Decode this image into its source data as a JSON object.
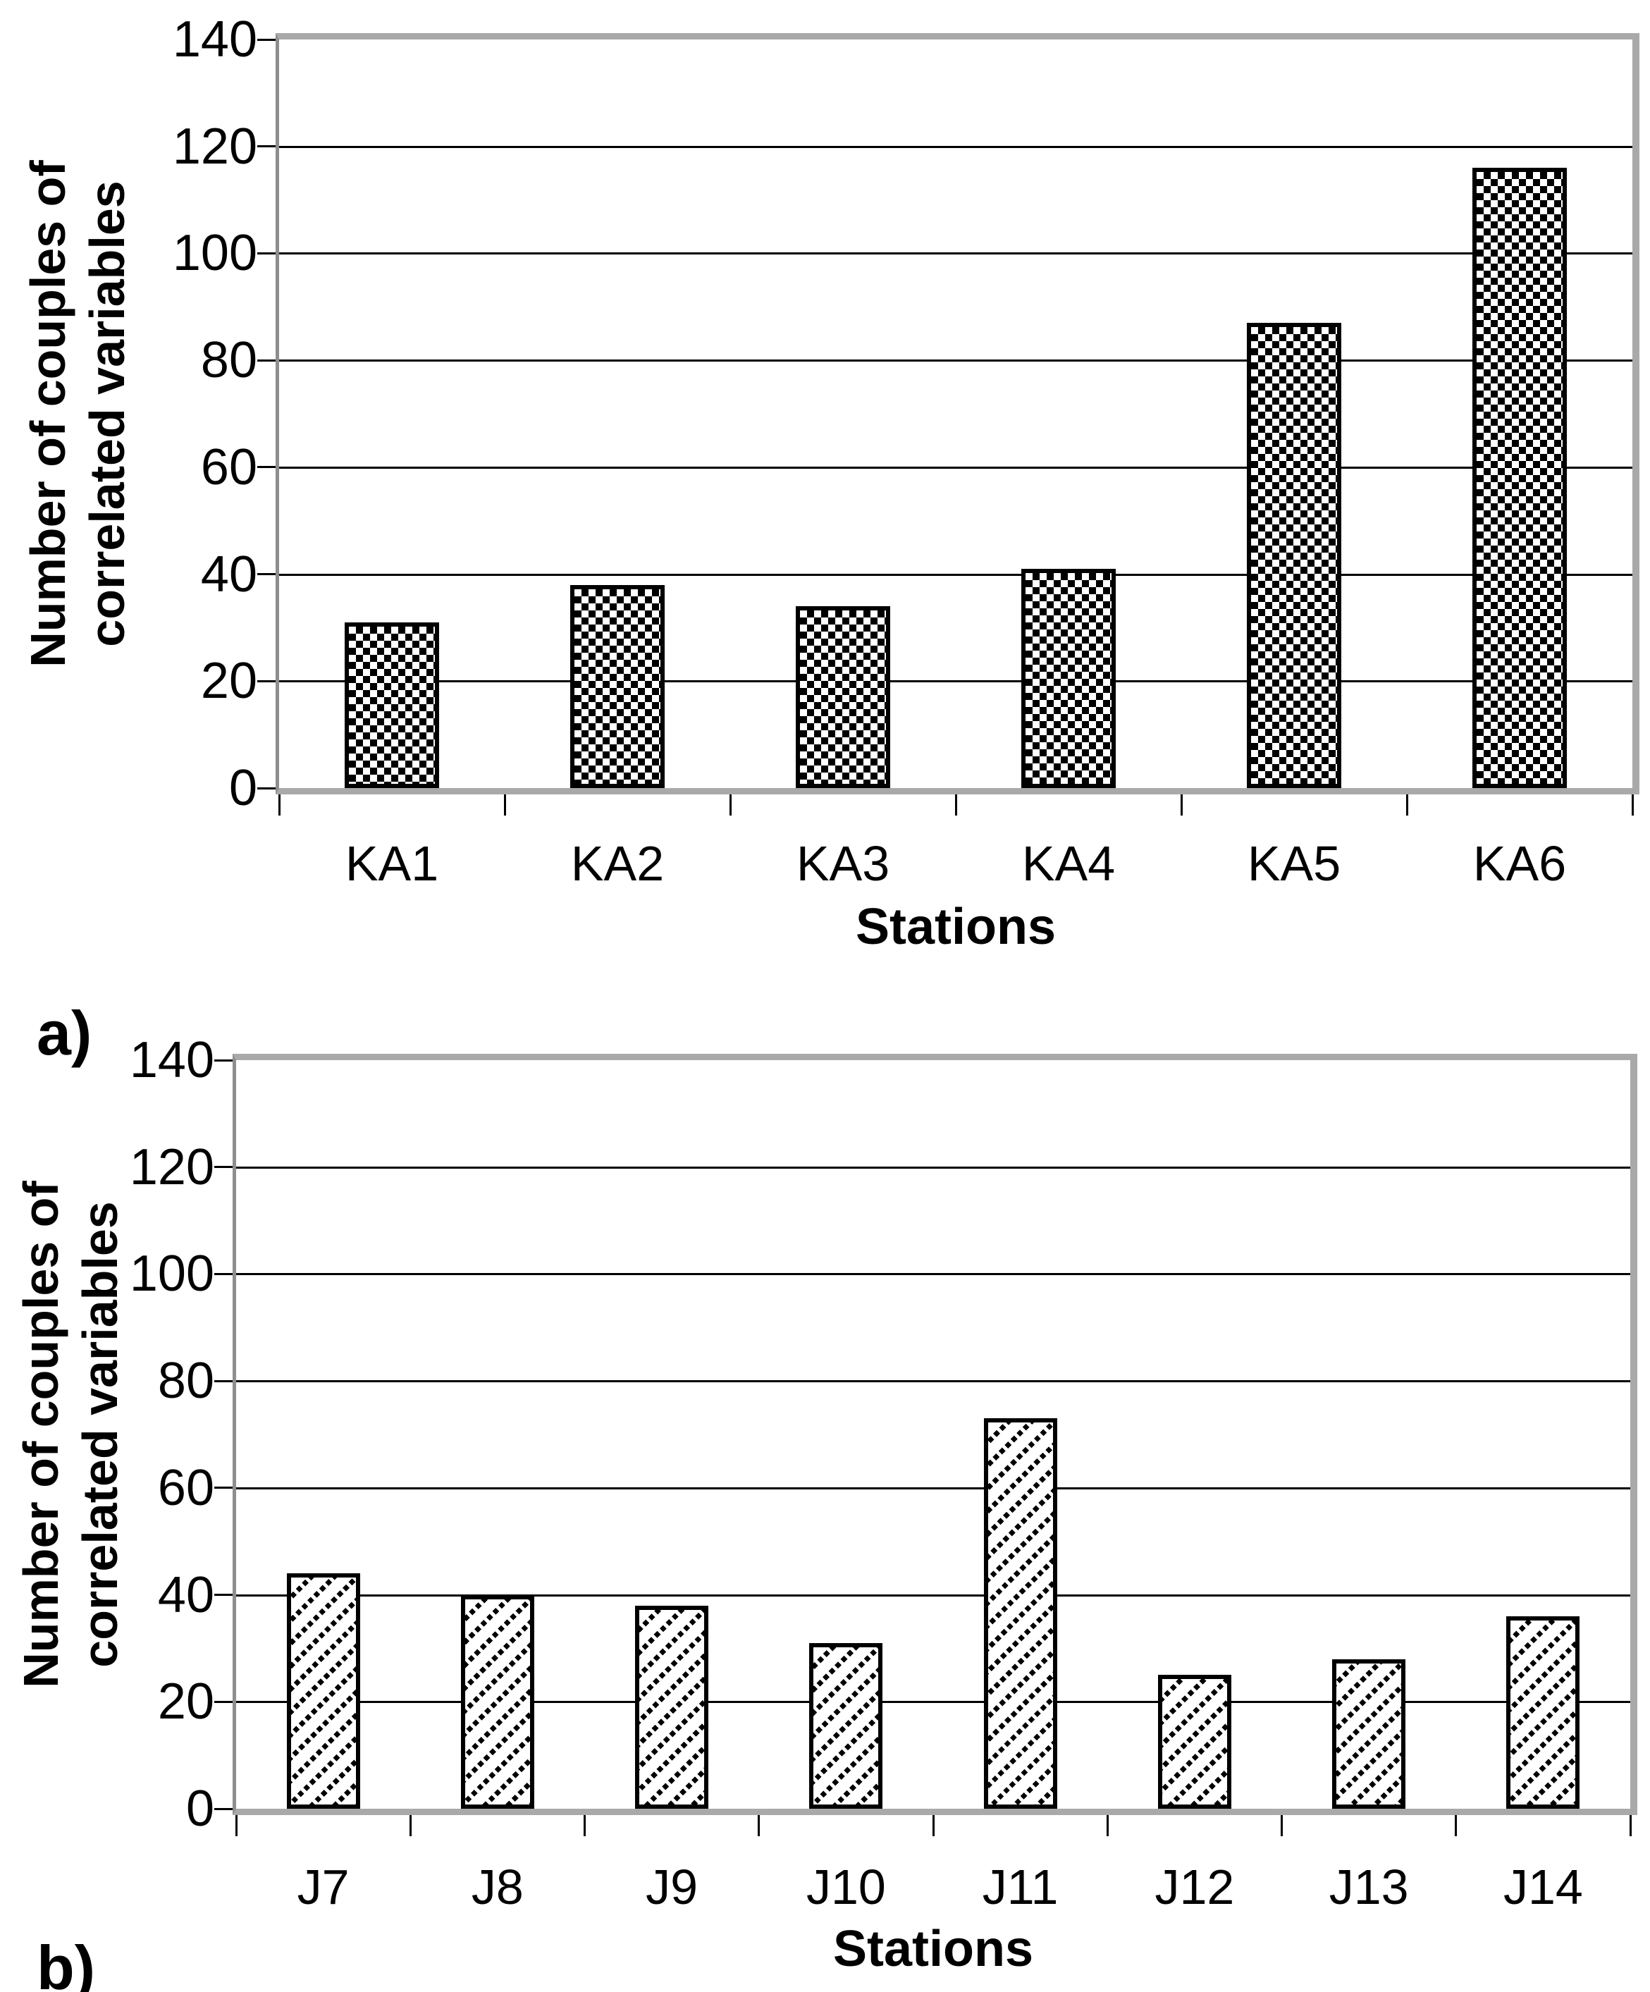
{
  "figure_type": "two-panel bar chart figure",
  "colors": {
    "text": "#000000",
    "gridline": "#000000",
    "bar_border": "#000000",
    "bar_fill": "#ffffff",
    "plot_border_gray": "#a9a9a9",
    "axis_line_gray": "#8e8e8e",
    "background": "#ffffff"
  },
  "chart_data": [
    {
      "type": "bar",
      "panel_label": "a)",
      "title": "",
      "xlabel": "Stations",
      "ylabel": "Number of couples of correlated variables",
      "ylabel_lines": [
        "Number of couples of",
        "correlated variables"
      ],
      "categories": [
        "KA1",
        "KA2",
        "KA3",
        "KA4",
        "KA5",
        "KA6"
      ],
      "values": [
        31,
        38,
        34,
        41,
        87,
        116
      ],
      "ylim": [
        0,
        140
      ],
      "yticks": [
        0,
        20,
        40,
        60,
        80,
        100,
        120,
        140
      ],
      "grid": true,
      "legend_position": "none",
      "bar_pattern": "checkerboard"
    },
    {
      "type": "bar",
      "panel_label": "b)",
      "title": "",
      "xlabel": "Stations",
      "ylabel": "Number of couples of correlated variables",
      "ylabel_lines": [
        "Number of couples of",
        "correlated variables"
      ],
      "categories": [
        "J7",
        "J8",
        "J9",
        "J10",
        "J11",
        "J12",
        "J13",
        "J14"
      ],
      "values": [
        44,
        40,
        38,
        31,
        73,
        25,
        28,
        36
      ],
      "ylim": [
        0,
        140
      ],
      "yticks": [
        0,
        20,
        40,
        60,
        80,
        100,
        120,
        140
      ],
      "grid": true,
      "legend_position": "none",
      "bar_pattern": "diagonal-stripes"
    }
  ]
}
